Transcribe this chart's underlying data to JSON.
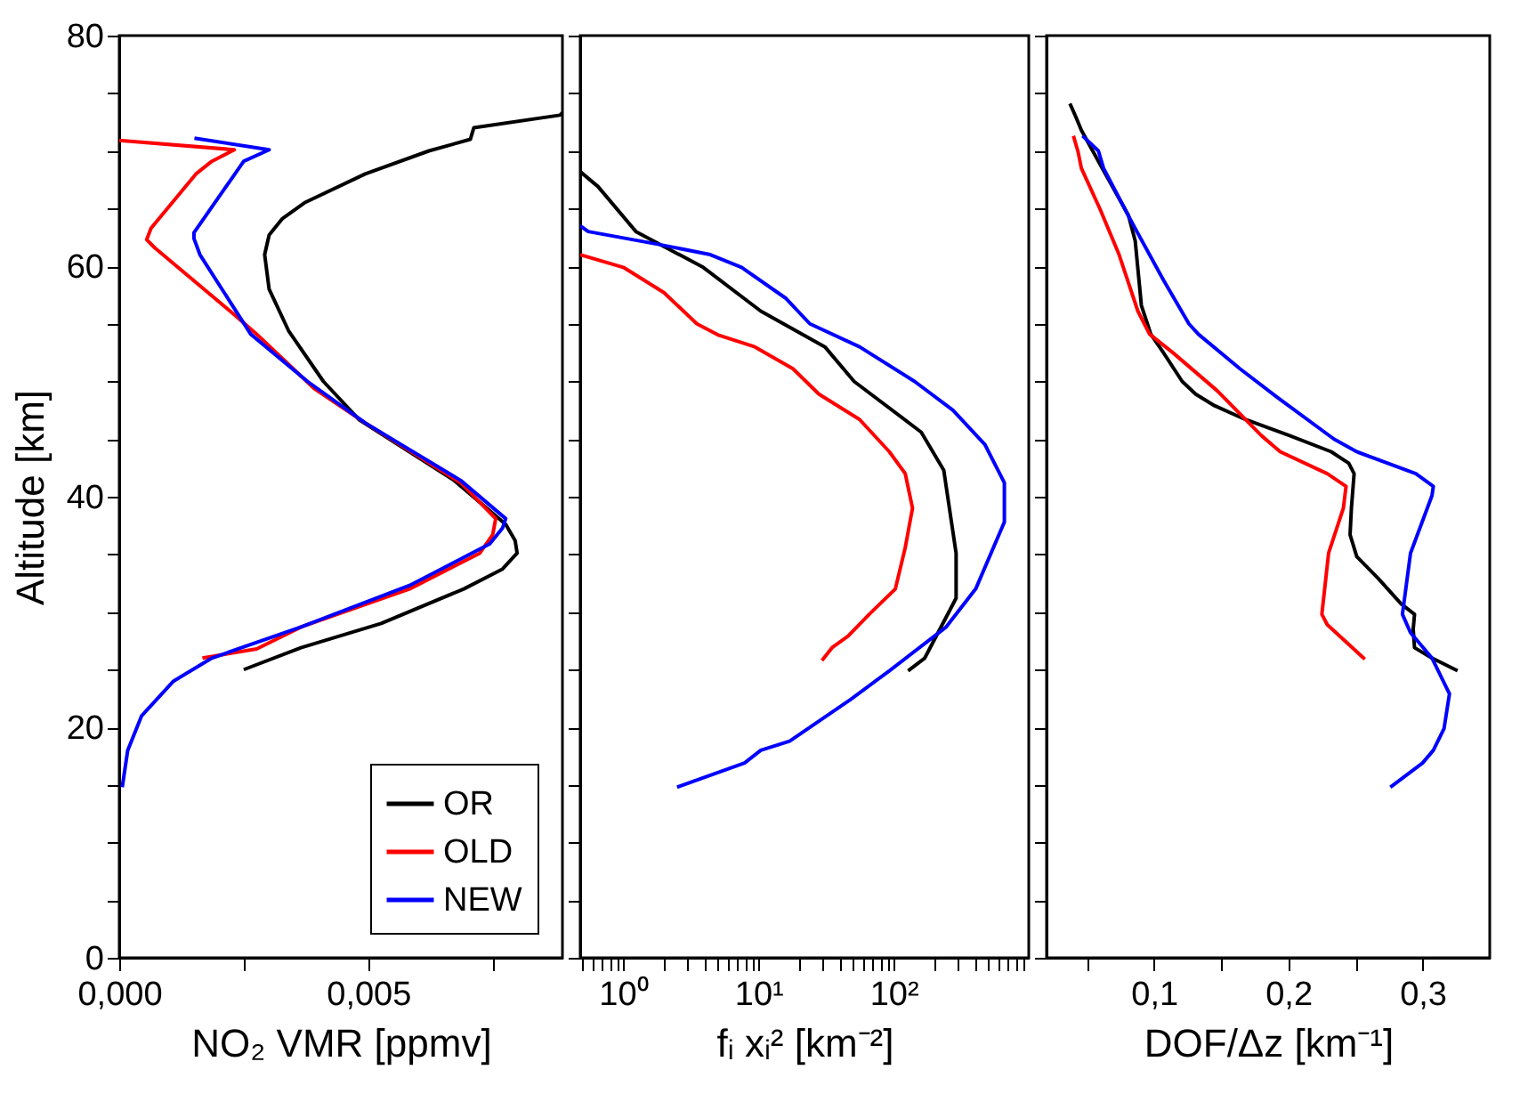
{
  "chart_data": [
    {
      "type": "line",
      "xlabel": "NO₂ VMR [ppmv]",
      "ylabel": "Altitude [km]",
      "xlim": [
        0,
        0.0089
      ],
      "ylim": [
        0,
        80
      ],
      "xticks": [
        {
          "value": 0,
          "label": "0,000"
        },
        {
          "value": 0.0025,
          "label": null
        },
        {
          "value": 0.005,
          "label": "0,005"
        },
        {
          "value": 0.0075,
          "label": null
        }
      ],
      "yticks": [
        0,
        {
          "value": 5,
          "label": null
        },
        {
          "value": 10,
          "label": null
        },
        {
          "value": 15,
          "label": null
        },
        20,
        {
          "value": 25,
          "label": null
        },
        {
          "value": 30,
          "label": null
        },
        {
          "value": 35,
          "label": null
        },
        40,
        {
          "value": 45,
          "label": null
        },
        {
          "value": 50,
          "label": null
        },
        {
          "value": 55,
          "label": null
        },
        60,
        {
          "value": 65,
          "label": null
        },
        {
          "value": 70,
          "label": null
        },
        {
          "value": 75,
          "label": null
        },
        80
      ],
      "grid": false,
      "legend": "bottom right",
      "series": [
        {
          "name": "OR",
          "color": "#000000",
          "x": [
            0.0025,
            0.00365,
            0.00526,
            0.00692,
            0.00769,
            0.00799,
            0.00795,
            0.00776,
            0.00673,
            0.00481,
            0.0041,
            0.0034,
            0.00301,
            0.00292,
            0.00301,
            0.00327,
            0.00372,
            0.00494,
            0.00622,
            0.00705,
            0.00712,
            0.00885,
            0.0089
          ],
          "values": [
            25.0,
            26.9,
            29.0,
            32.0,
            33.7,
            35.1,
            36.2,
            37.6,
            41.4,
            46.7,
            50.0,
            54.4,
            58.0,
            61.0,
            62.7,
            64.1,
            65.5,
            68.0,
            70.0,
            71.0,
            72.0,
            73.1,
            73.3
          ]
        },
        {
          "name": "OLD",
          "color": "#ff0000",
          "x": [
            0.00167,
            0.00276,
            0.00365,
            0.00583,
            0.00724,
            0.0075,
            0.00756,
            0.00686,
            0.00494,
            0.00391,
            0.00276,
            0.00231,
            0.00071,
            0.00055,
            0.00064,
            0.00154,
            0.00186,
            0.00231,
            0.0
          ],
          "values": [
            26.0,
            26.8,
            28.7,
            32.0,
            35.1,
            36.7,
            38.1,
            41.2,
            46.4,
            49.4,
            54.1,
            55.8,
            61.6,
            62.3,
            63.3,
            68.0,
            69.1,
            70.1,
            70.9
          ]
        },
        {
          "name": "NEW",
          "color": "#0000ff",
          "x": [
            6e-05,
            0.00017,
            0.00045,
            0.00109,
            0.00186,
            0.00365,
            0.00583,
            0.00744,
            0.0077,
            0.00776,
            0.00686,
            0.00494,
            0.00378,
            0.00264,
            0.00162,
            0.0015,
            0.0015,
            0.0025,
            0.00301,
            0.00151
          ],
          "values": [
            14.8,
            18.0,
            21.0,
            24.0,
            26.0,
            28.7,
            32.3,
            35.9,
            37.3,
            38.1,
            41.4,
            46.4,
            50.0,
            54.1,
            61.0,
            62.4,
            62.9,
            69.1,
            70.1,
            71.1
          ]
        }
      ]
    },
    {
      "type": "line",
      "xlabel": "fᵢ xᵢ² [km⁻²]",
      "log": "x",
      "xlim": [
        0.48,
        1000
      ],
      "ylim": [
        0,
        80
      ],
      "tick_labels": "x",
      "xticks": [
        {
          "value": 0.5,
          "label": null
        },
        {
          "value": 0.6,
          "label": null
        },
        {
          "value": 0.7,
          "label": null
        },
        {
          "value": 0.8,
          "label": null
        },
        {
          "value": 0.9,
          "label": null
        },
        {
          "value": 1,
          "label": "10⁰"
        },
        {
          "value": 2,
          "label": null
        },
        {
          "value": 3,
          "label": null
        },
        {
          "value": 4,
          "label": null
        },
        {
          "value": 5,
          "label": null
        },
        {
          "value": 6,
          "label": null
        },
        {
          "value": 7,
          "label": null
        },
        {
          "value": 8,
          "label": null
        },
        {
          "value": 9,
          "label": null
        },
        {
          "value": 10,
          "label": "10¹"
        },
        {
          "value": 20,
          "label": null
        },
        {
          "value": 30,
          "label": null
        },
        {
          "value": 40,
          "label": null
        },
        {
          "value": 50,
          "label": null
        },
        {
          "value": 60,
          "label": null
        },
        {
          "value": 70,
          "label": null
        },
        {
          "value": 80,
          "label": null
        },
        {
          "value": 90,
          "label": null
        },
        {
          "value": 100,
          "label": "10²"
        },
        {
          "value": 200,
          "label": null
        },
        {
          "value": 300,
          "label": null
        },
        {
          "value": 400,
          "label": null
        },
        {
          "value": 500,
          "label": null
        },
        {
          "value": 600,
          "label": null
        },
        {
          "value": 700,
          "label": null
        },
        {
          "value": 800,
          "label": null
        },
        {
          "value": 900,
          "label": null
        }
      ],
      "yticks": [
        0,
        {
          "value": 5,
          "label": null
        },
        {
          "value": 10,
          "label": null
        },
        {
          "value": 15,
          "label": null
        },
        20,
        {
          "value": 25,
          "label": null
        },
        {
          "value": 30,
          "label": null
        },
        {
          "value": 35,
          "label": null
        },
        40,
        {
          "value": 45,
          "label": null
        },
        {
          "value": 50,
          "label": null
        },
        {
          "value": 55,
          "label": null
        },
        60,
        {
          "value": 65,
          "label": null
        },
        {
          "value": 70,
          "label": null
        },
        {
          "value": 75,
          "label": null
        },
        80
      ],
      "grid": false,
      "series": [
        {
          "color": "#000000",
          "x": [
            0.48,
            0.65,
            1.24,
            3.9,
            10.4,
            31,
            51,
            160,
            235,
            290,
            290,
            170,
            128
          ],
          "values": [
            68.2,
            66.9,
            63.0,
            59.9,
            56.1,
            53.0,
            50.0,
            45.6,
            42.3,
            35.1,
            31.2,
            26.0,
            24.9
          ]
        },
        {
          "color": "#ff0000",
          "x": [
            0.48,
            1.0,
            2.0,
            3.5,
            5.1,
            9.4,
            18,
            28,
            56,
            93,
            122,
            138,
            122,
            103,
            66,
            46,
            35,
            29.5
          ],
          "values": [
            61.0,
            59.9,
            57.7,
            55.0,
            54.0,
            53.0,
            51.1,
            48.9,
            46.7,
            43.9,
            42.0,
            39.0,
            35.6,
            32.0,
            29.8,
            27.9,
            26.9,
            25.8
          ]
        },
        {
          "color": "#0000ff",
          "x": [
            0.48,
            0.55,
            1.8,
            4.4,
            7.5,
            16,
            24,
            56,
            143,
            275,
            475,
            660,
            660,
            405,
            245,
            93,
            48,
            17,
            10.4,
            7.9,
            2.5
          ],
          "values": [
            63.5,
            63.0,
            61.9,
            61.0,
            59.9,
            57.2,
            55.0,
            53.0,
            50.0,
            47.5,
            44.5,
            41.2,
            37.8,
            32.0,
            28.7,
            24.9,
            22.4,
            18.8,
            18.0,
            16.9,
            14.8
          ]
        }
      ]
    },
    {
      "type": "line",
      "xlabel": "DOF/Δz  [km⁻¹]",
      "xlim": [
        0.02,
        0.35
      ],
      "ylim": [
        0,
        80
      ],
      "tick_labels": "x",
      "xticks": [
        {
          "value": 0.05,
          "label": null
        },
        {
          "value": 0.1,
          "label": "0,1"
        },
        {
          "value": 0.15,
          "label": null
        },
        {
          "value": 0.2,
          "label": "0,2"
        },
        {
          "value": 0.25,
          "label": null
        },
        {
          "value": 0.3,
          "label": "0,3"
        }
      ],
      "yticks": [
        0,
        {
          "value": 5,
          "label": null
        },
        {
          "value": 10,
          "label": null
        },
        {
          "value": 15,
          "label": null
        },
        20,
        {
          "value": 25,
          "label": null
        },
        {
          "value": 30,
          "label": null
        },
        {
          "value": 35,
          "label": null
        },
        40,
        {
          "value": 45,
          "label": null
        },
        {
          "value": 50,
          "label": null
        },
        {
          "value": 55,
          "label": null
        },
        60,
        {
          "value": 65,
          "label": null
        },
        {
          "value": 70,
          "label": null
        },
        {
          "value": 75,
          "label": null
        },
        80
      ],
      "grid": false,
      "series": [
        {
          "color": "#000000",
          "x": [
            0.0374,
            0.042,
            0.0459,
            0.06,
            0.081,
            0.086,
            0.0906,
            0.0976,
            0.107,
            0.121,
            0.131,
            0.145,
            0.168,
            0.201,
            0.232,
            0.245,
            0.249,
            0.247,
            0.246,
            0.251,
            0.267,
            0.284,
            0.294,
            0.293,
            0.294,
            0.307,
            0.326
          ],
          "values": [
            74.1,
            72.9,
            71.8,
            68.8,
            64.4,
            62.2,
            56.6,
            54.1,
            52.5,
            50.0,
            48.9,
            47.9,
            46.7,
            45.3,
            43.9,
            42.9,
            42.0,
            39.0,
            36.7,
            34.8,
            32.9,
            30.7,
            29.8,
            28.5,
            26.9,
            26.0,
            24.9
          ]
        },
        {
          "color": "#ff0000",
          "x": [
            0.04,
            0.0435,
            0.0459,
            0.06,
            0.074,
            0.088,
            0.0967,
            0.114,
            0.147,
            0.18,
            0.194,
            0.229,
            0.243,
            0.241,
            0.23,
            0.225,
            0.229,
            0.257
          ],
          "values": [
            71.3,
            69.9,
            68.5,
            64.9,
            61.0,
            56.1,
            54.1,
            52.5,
            49.2,
            45.3,
            43.9,
            42.0,
            40.9,
            39.0,
            35.1,
            29.8,
            28.9,
            25.9
          ]
        },
        {
          "color": "#0000ff",
          "x": [
            0.0468,
            0.0586,
            0.0624,
            0.0835,
            0.107,
            0.126,
            0.133,
            0.164,
            0.192,
            0.234,
            0.251,
            0.295,
            0.308,
            0.307,
            0.291,
            0.285,
            0.291,
            0.307,
            0.32,
            0.316,
            0.308,
            0.3,
            0.276
          ],
          "values": [
            71.3,
            70.0,
            68.5,
            63.8,
            58.8,
            55.0,
            54.1,
            51.1,
            48.6,
            45.0,
            43.9,
            42.0,
            40.9,
            40.1,
            35.1,
            29.8,
            28.2,
            26.0,
            22.9,
            19.9,
            18.0,
            16.9,
            14.8
          ]
        }
      ]
    }
  ]
}
